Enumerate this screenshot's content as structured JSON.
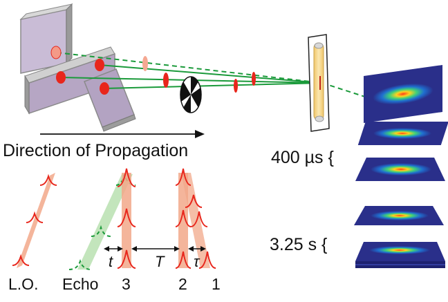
{
  "labels": {
    "direction": "Direction of Propagation",
    "time_400": "400 µs {",
    "time_325": "3.25 s {",
    "lo": "L.O.",
    "echo": "Echo",
    "pulse3": "3",
    "pulse2": "2",
    "pulse1": "1",
    "delay_t": "t",
    "delay_T": "T",
    "delay_tau": "τ"
  },
  "colors": {
    "beam": "#1a9a3a",
    "pulse": "#e8261c",
    "pulse_band": "#f2a88a",
    "echo_band": "#b9e0b0",
    "mirror_face": "#b8a8c4",
    "mirror_edge": "#8a8a8a",
    "cell_fill": "#f5d98a",
    "panel_bg": "#2b2f8f"
  }
}
